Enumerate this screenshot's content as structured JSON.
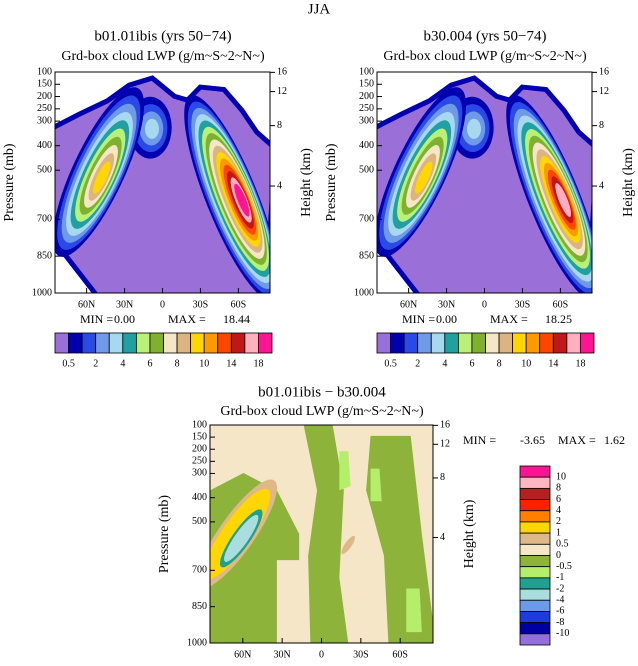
{
  "title": "JJA",
  "chart_data": [
    {
      "type": "contour",
      "title": "b01.01ibis (yrs 50−74)",
      "subtitle": "Grd-box cloud LWP (g/m~S~2~N~)",
      "ylabel": "Pressure (mb)",
      "y2label": "Height (km)",
      "xlim": [
        85,
        -85
      ],
      "xticks": [
        {
          "value": 60,
          "label": "60N"
        },
        {
          "value": 30,
          "label": "30N"
        },
        0,
        {
          "value": -30,
          "label": "30S"
        },
        {
          "value": -60,
          "label": "60S"
        }
      ],
      "ylim": [
        1000,
        100
      ],
      "yticks": [
        100,
        150,
        200,
        250,
        300,
        400,
        500,
        700,
        850,
        1000
      ],
      "y2lim": [
        0,
        16.1
      ],
      "y2ticks": [
        16,
        12,
        8,
        4
      ],
      "stats": {
        "names": [
          "MIN =",
          "MAX ="
        ],
        "values": [
          0,
          18.44
        ],
        "value_labels": [
          "0.00",
          "18.44"
        ]
      },
      "colorbar": {
        "colors": [
          "#9b6fd8",
          "#0000b0",
          "#2a4ae8",
          "#6f9ae8",
          "#a8d8f0",
          "#20a0a0",
          "#b8f078",
          "#80b030",
          "#f5e6c8",
          "#dcb482",
          "#ffd700",
          "#ff9900",
          "#ff4500",
          "#c01818",
          "#ffb0c0",
          "#ff1493"
        ],
        "labels": [
          0.5,
          2,
          4,
          6,
          8,
          10,
          14,
          18
        ]
      }
    },
    {
      "type": "contour",
      "title": "b30.004 (yrs 50−74)",
      "subtitle": "Grd-box cloud LWP (g/m~S~2~N~)",
      "ylabel": "Pressure (mb)",
      "y2label": "Height (km)",
      "xlim": [
        85,
        -85
      ],
      "xticks": [
        {
          "value": 60,
          "label": "60N"
        },
        {
          "value": 30,
          "label": "30N"
        },
        0,
        {
          "value": -30,
          "label": "30S"
        },
        {
          "value": -60,
          "label": "60S"
        }
      ],
      "ylim": [
        1000,
        100
      ],
      "yticks": [
        100,
        150,
        200,
        250,
        300,
        400,
        500,
        700,
        850,
        1000
      ],
      "y2lim": [
        0,
        16.1
      ],
      "y2ticks": [
        16,
        12,
        8,
        4
      ],
      "stats": {
        "names": [
          "MIN =",
          "MAX ="
        ],
        "values": [
          0,
          18.25
        ],
        "value_labels": [
          "0.00",
          "18.25"
        ]
      },
      "colorbar": {
        "colors": [
          "#9b6fd8",
          "#0000b0",
          "#2a4ae8",
          "#6f9ae8",
          "#a8d8f0",
          "#20a0a0",
          "#b8f078",
          "#80b030",
          "#f5e6c8",
          "#dcb482",
          "#ffd700",
          "#ff9900",
          "#ff4500",
          "#c01818",
          "#ffb0c0",
          "#ff1493"
        ],
        "labels": [
          0.5,
          2,
          4,
          6,
          8,
          10,
          14,
          18
        ]
      }
    },
    {
      "type": "contour",
      "title": "b01.01ibis − b30.004",
      "subtitle": "Grd-box cloud LWP (g/m~S~2~N~)",
      "ylabel": "Pressure (mb)",
      "y2label": "Height (km)",
      "xlim": [
        85,
        -85
      ],
      "xticks": [
        {
          "value": 60,
          "label": "60N"
        },
        {
          "value": 30,
          "label": "30N"
        },
        0,
        {
          "value": -30,
          "label": "30S"
        },
        {
          "value": -60,
          "label": "60S"
        }
      ],
      "ylim": [
        1000,
        100
      ],
      "yticks": [
        100,
        150,
        200,
        250,
        300,
        400,
        500,
        700,
        850,
        1000
      ],
      "y2lim": [
        0,
        16.1
      ],
      "y2ticks": [
        16,
        12,
        8,
        4
      ],
      "stats": {
        "names": [
          "MIN =",
          "MAX ="
        ],
        "values": [
          -3.65,
          1.62
        ],
        "value_labels": [
          "-3.65",
          "1.62"
        ]
      },
      "colorbar": {
        "colors": [
          "#ff1493",
          "#ffb6c1",
          "#b22222",
          "#ff2000",
          "#ff7f00",
          "#ffd700",
          "#deb887",
          "#f5e6c8",
          "#8db33a",
          "#b4ee6a",
          "#20a090",
          "#aadddd",
          "#6a9ae8",
          "#1c3ce0",
          "#0000a0",
          "#9370db"
        ],
        "labels": [
          10,
          8,
          6,
          4,
          2,
          1,
          0.5,
          0,
          -0.5,
          -1,
          -2,
          -4,
          -6,
          -8,
          -10
        ]
      }
    }
  ]
}
